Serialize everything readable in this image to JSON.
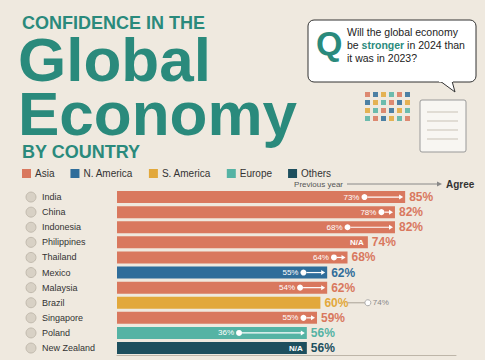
{
  "chart_data": {
    "type": "bar",
    "orientation": "horizontal",
    "title": [
      "CONFIDENCE IN THE",
      "Global",
      "Economy",
      "BY COUNTRY"
    ],
    "question_mark": "Q",
    "question": [
      "Will the global economy be",
      "stronger",
      "in 2024 than it was in 2023?"
    ],
    "groups": [
      {
        "name": "Asia",
        "color": "#d9785e"
      },
      {
        "name": "N. America",
        "color": "#2f6d9a"
      },
      {
        "name": "S. America",
        "color": "#e2a83b"
      },
      {
        "name": "Europe",
        "color": "#55b3a4"
      },
      {
        "name": "Others",
        "color": "#1d4f5e"
      }
    ],
    "categories": [
      "India",
      "China",
      "Indonesia",
      "Philippines",
      "Thailand",
      "Mexico",
      "Malaysia",
      "Brazil",
      "Singapore",
      "Poland",
      "New Zealand"
    ],
    "series": [
      {
        "name": "Agree",
        "values": [
          85,
          82,
          82,
          74,
          68,
          62,
          62,
          60,
          59,
          56,
          56
        ],
        "value_labels": [
          "85%",
          "82%",
          "82%",
          "74%",
          "68%",
          "62%",
          "62%",
          "60%",
          "59%",
          "56%",
          "56%"
        ],
        "colors": [
          "#d9785e",
          "#d9785e",
          "#d9785e",
          "#d9785e",
          "#d9785e",
          "#2f6d9a",
          "#d9785e",
          "#e2a83b",
          "#d9785e",
          "#55b3a4",
          "#1d4f5e"
        ]
      },
      {
        "name": "Previous year",
        "type": "scatter",
        "marker": "circle",
        "values": [
          73,
          78,
          68,
          null,
          64,
          55,
          54,
          74,
          55,
          36,
          null
        ],
        "value_labels": [
          "73%",
          "78%",
          "68%",
          "N/A",
          "64%",
          "55%",
          "54%",
          "74%",
          "55%",
          "36%",
          "N/A"
        ]
      }
    ],
    "xlim": [
      0,
      100
    ],
    "grid": false,
    "tick_labels": "y",
    "data_labels": true
  }
}
